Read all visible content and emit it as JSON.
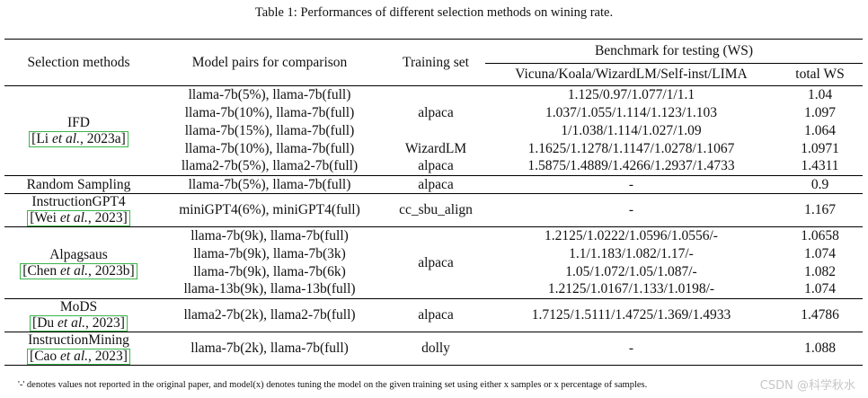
{
  "caption": "Table 1: Performances of different selection methods on wining rate.",
  "headers": {
    "selection_methods": "Selection methods",
    "model_pairs": "Model pairs for comparison",
    "training_set": "Training set",
    "benchmark": "Benchmark for testing (WS)",
    "vicuna": "Vicuna/Koala/WizardLM/Self-inst/LIMA",
    "total": "total WS"
  },
  "groups": [
    {
      "method": "IFD",
      "ref": {
        "author": "Li",
        "etal": "et al.",
        "year": "2023a"
      },
      "rows": [
        {
          "pair": "llama-7b(5%), llama-7b(full)",
          "vals": "1.125/0.97/1.077/1/1.1",
          "total": "1.04"
        },
        {
          "pair": "llama-7b(10%), llama-7b(full)",
          "vals": "1.037/1.055/1.114/1.123/1.103",
          "total": "1.097"
        },
        {
          "pair": "llama-7b(15%), llama-7b(full)",
          "vals": "1/1.038/1.114/1.027/1.09",
          "total": "1.064"
        },
        {
          "pair": "llama-7b(10%), llama-7b(full)",
          "vals": "1.1625/1.1278/1.1147/1.0278/1.1067",
          "total": "1.0971"
        },
        {
          "pair": "llama2-7b(5%), llama2-7b(full)",
          "vals": "1.5875/1.4889/1.4266/1.2937/1.4733",
          "total": "1.4311"
        }
      ],
      "training": [
        "alpaca",
        "WizardLM",
        "alpaca"
      ]
    },
    {
      "method": "Random Sampling",
      "rows": [
        {
          "pair": "llama-7b(5%), llama-7b(full)",
          "training": "alpaca",
          "vals": "-",
          "total": "0.9"
        }
      ]
    },
    {
      "method": "InstructionGPT4",
      "ref": {
        "author": "Wei",
        "etal": "et al.",
        "year": "2023"
      },
      "rows": [
        {
          "pair": "miniGPT4(6%), miniGPT4(full)",
          "training": "cc_sbu_align",
          "vals": "-",
          "total": "1.167"
        }
      ]
    },
    {
      "method": "Alpagsaus",
      "ref": {
        "author": "Chen",
        "etal": "et al.",
        "year": "2023b"
      },
      "training": "alpaca",
      "rows": [
        {
          "pair": "llama-7b(9k), llama-7b(full)",
          "vals": "1.2125/1.0222/1.0596/1.0556/-",
          "total": "1.0658"
        },
        {
          "pair": "llama-7b(9k), llama-7b(3k)",
          "vals": "1.1/1.183/1.082/1.17/-",
          "total": "1.074"
        },
        {
          "pair": "llama-7b(9k), llama-7b(6k)",
          "vals": "1.05/1.072/1.05/1.087/-",
          "total": "1.082"
        },
        {
          "pair": "llama-13b(9k), llama-13b(full)",
          "vals": "1.2125/1.0167/1.133/1.0198/-",
          "total": "1.074"
        }
      ]
    },
    {
      "method": "MoDS",
      "ref": {
        "author": "Du",
        "etal": "et al.",
        "year": "2023"
      },
      "rows": [
        {
          "pair": "llama2-7b(2k), llama2-7b(full)",
          "training": "alpaca",
          "vals": "1.7125/1.5111/1.4725/1.369/1.4933",
          "total": "1.4786"
        }
      ]
    },
    {
      "method": "InstructionMining",
      "ref": {
        "author": "Cao",
        "etal": "et al.",
        "year": "2023"
      },
      "rows": [
        {
          "pair": "llama-7b(2k), llama-7b(full)",
          "training": "dolly",
          "vals": "-",
          "total": "1.088"
        }
      ]
    }
  ],
  "ref_punct": {
    "open": "[",
    "comma": ", ",
    "close": "]"
  },
  "footnote": "'-' denotes values not reported in the original paper, and model(x) denotes tuning the model on the given training set using either x samples or x percentage of samples.",
  "watermark": "CSDN @科学秋水"
}
